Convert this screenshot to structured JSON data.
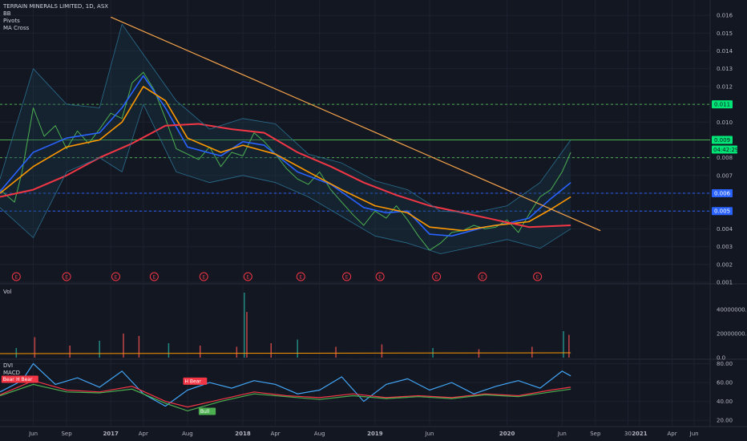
{
  "header": {
    "symbol_line": "TERRAIN MINERALS LIMITED, 1D, ASX",
    "indicators": [
      "BB",
      "Pivots",
      "MA Cross"
    ]
  },
  "volume_pane": {
    "label": "Vol"
  },
  "osc_pane": {
    "labels": [
      "DVI",
      "MACD"
    ]
  },
  "colors": {
    "background": "#131722",
    "grid": "#1e2230",
    "price_up": "#26a69a",
    "price_line": "#4caf50",
    "ma_fast": "#2962ff",
    "ma_mid": "#ff9800",
    "ma_slow": "#f23645",
    "trendline": "#f5a34a",
    "resistance": "#4caf50",
    "support": "#2962ff",
    "bb": "#2a6f8f",
    "dvi": "#42a5f5"
  },
  "chart_data": [
    {
      "type": "line",
      "title": "TERRAIN MINERALS LIMITED, 1D, ASX",
      "x_tick_labels": [
        "Jun",
        "Sep",
        "2017",
        "Apr",
        "Aug",
        "2018",
        "Apr",
        "Aug",
        "2019",
        "Jun",
        "2020",
        "Jun",
        "Sep",
        "30",
        "2021",
        "Apr",
        "Jun"
      ],
      "x_tick_dates": [
        "2016-06-01",
        "2016-09-01",
        "2017-01-01",
        "2017-04-01",
        "2017-08-01",
        "2018-01-01",
        "2018-04-01",
        "2018-08-01",
        "2019-01-01",
        "2019-06-01",
        "2020-01-01",
        "2020-06-01",
        "2020-09-01",
        "2020-11-30",
        "2021-01-01",
        "2021-04-01",
        "2021-06-01"
      ],
      "x_range": [
        "2016-03-01",
        "2021-07-15"
      ],
      "y_ticks": [
        "0.001",
        "0.002",
        "0.003",
        "0.004",
        "0.005",
        "0.006",
        "0.007",
        "0.008",
        "0.009",
        "0.010",
        "0.011",
        "0.012",
        "0.013",
        "0.014",
        "0.015",
        "0.016"
      ],
      "ylim": [
        0.001,
        0.0165
      ],
      "horizontal_levels": [
        {
          "price": 0.011,
          "label": "0.011",
          "style": "dashed",
          "color": "#4caf50"
        },
        {
          "price": 0.009,
          "label": "0.009",
          "style": "solid",
          "color": "#4caf50"
        },
        {
          "price": 0.006,
          "label": "0.006",
          "style": "dashed",
          "color": "#2962ff"
        },
        {
          "price": 0.005,
          "label": "0.005",
          "style": "dashed",
          "color": "#2962ff"
        },
        {
          "price": 0.008,
          "style": "dashed",
          "color": "#4caf50"
        }
      ],
      "countdown_label": "04:42:29",
      "trendline": {
        "from": [
          "2017-01-01",
          0.0159
        ],
        "to": [
          "2020-09-15",
          0.0039
        ]
      },
      "earnings_markers": {
        "label": "E",
        "dates": [
          "2016-04-15",
          "2016-09-01",
          "2017-01-15",
          "2017-05-01",
          "2017-09-15",
          "2018-01-15",
          "2018-06-10",
          "2018-10-15",
          "2019-01-15",
          "2019-06-20",
          "2019-10-25",
          "2020-03-25"
        ]
      },
      "series": [
        {
          "role": "close",
          "color": "#4caf50",
          "x": [
            "2016-03-01",
            "2016-04-10",
            "2016-05-01",
            "2016-06-01",
            "2016-07-01",
            "2016-08-01",
            "2016-09-01",
            "2016-10-01",
            "2016-11-01",
            "2016-12-01",
            "2017-01-01",
            "2017-02-01",
            "2017-03-01",
            "2017-04-01",
            "2017-05-01",
            "2017-06-01",
            "2017-07-01",
            "2017-08-01",
            "2017-09-01",
            "2017-10-01",
            "2017-11-01",
            "2017-12-01",
            "2018-01-01",
            "2018-02-01",
            "2018-03-01",
            "2018-04-01",
            "2018-05-01",
            "2018-06-01",
            "2018-07-01",
            "2018-08-01",
            "2018-09-01",
            "2018-10-01",
            "2018-11-01",
            "2018-12-01",
            "2019-01-01",
            "2019-02-01",
            "2019-03-01",
            "2019-04-01",
            "2019-05-01",
            "2019-06-01",
            "2019-07-01",
            "2019-08-01",
            "2019-09-01",
            "2019-10-01",
            "2019-11-01",
            "2019-12-01",
            "2020-01-01",
            "2020-02-01",
            "2020-03-01",
            "2020-04-01",
            "2020-05-01",
            "2020-06-01",
            "2020-06-25"
          ],
          "y": [
            0.0062,
            0.0055,
            0.0072,
            0.0108,
            0.0092,
            0.0098,
            0.0085,
            0.0095,
            0.0088,
            0.0096,
            0.0105,
            0.0102,
            0.0122,
            0.0128,
            0.0118,
            0.0102,
            0.0085,
            0.0082,
            0.0079,
            0.0086,
            0.0075,
            0.0083,
            0.0081,
            0.0094,
            0.0089,
            0.0082,
            0.0074,
            0.0068,
            0.0065,
            0.0072,
            0.0062,
            0.0055,
            0.0048,
            0.0042,
            0.005,
            0.0046,
            0.0053,
            0.0045,
            0.0036,
            0.0028,
            0.0032,
            0.0038,
            0.0039,
            0.0042,
            0.004,
            0.0041,
            0.0045,
            0.0038,
            0.0048,
            0.0058,
            0.0062,
            0.0072,
            0.0083
          ]
        },
        {
          "role": "ma_fast",
          "color": "#2962ff",
          "x": [
            "2016-03-01",
            "2016-06-01",
            "2016-09-01",
            "2016-12-01",
            "2017-02-01",
            "2017-04-01",
            "2017-06-01",
            "2017-08-01",
            "2017-11-01",
            "2018-01-01",
            "2018-03-01",
            "2018-06-01",
            "2018-09-01",
            "2018-12-01",
            "2019-02-01",
            "2019-04-01",
            "2019-06-01",
            "2019-08-01",
            "2019-11-01",
            "2020-01-01",
            "2020-03-01",
            "2020-05-01",
            "2020-06-25"
          ],
          "y": [
            0.0061,
            0.0083,
            0.0091,
            0.0094,
            0.0108,
            0.0126,
            0.0108,
            0.0086,
            0.0081,
            0.0089,
            0.0087,
            0.0072,
            0.0065,
            0.0052,
            0.0049,
            0.005,
            0.0037,
            0.0036,
            0.0041,
            0.0043,
            0.0046,
            0.0057,
            0.0066
          ]
        },
        {
          "role": "ma_mid",
          "color": "#ff9800",
          "x": [
            "2016-03-01",
            "2016-06-01",
            "2016-09-01",
            "2016-12-01",
            "2017-02-01",
            "2017-04-01",
            "2017-06-01",
            "2017-08-01",
            "2017-11-01",
            "2018-01-01",
            "2018-04-01",
            "2018-07-01",
            "2018-10-01",
            "2019-01-01",
            "2019-04-01",
            "2019-06-01",
            "2019-09-01",
            "2019-12-01",
            "2020-03-01",
            "2020-05-01",
            "2020-06-25"
          ],
          "y": [
            0.006,
            0.0075,
            0.0086,
            0.009,
            0.01,
            0.012,
            0.0112,
            0.0091,
            0.0083,
            0.0087,
            0.0082,
            0.0072,
            0.0062,
            0.0053,
            0.0049,
            0.0041,
            0.0039,
            0.0042,
            0.0044,
            0.0051,
            0.0058
          ]
        },
        {
          "role": "ma_slow",
          "color": "#f23645",
          "x": [
            "2016-03-01",
            "2016-06-01",
            "2016-09-01",
            "2016-12-01",
            "2017-03-01",
            "2017-06-01",
            "2017-09-01",
            "2017-12-01",
            "2018-03-01",
            "2018-06-01",
            "2018-09-01",
            "2018-12-01",
            "2019-03-01",
            "2019-06-01",
            "2019-09-01",
            "2019-12-01",
            "2020-03-01",
            "2020-06-25"
          ],
          "y": [
            0.0058,
            0.0062,
            0.007,
            0.008,
            0.0088,
            0.0098,
            0.0099,
            0.0096,
            0.0094,
            0.0083,
            0.0075,
            0.0066,
            0.0059,
            0.0053,
            0.0049,
            0.0045,
            0.0041,
            0.0042
          ]
        },
        {
          "role": "bb_upper",
          "color": "#2a6f8f",
          "x": [
            "2016-03-01",
            "2016-06-01",
            "2016-09-01",
            "2016-12-01",
            "2017-02-01",
            "2017-04-01",
            "2017-07-01",
            "2017-10-01",
            "2018-01-01",
            "2018-04-01",
            "2018-07-01",
            "2018-10-01",
            "2019-01-01",
            "2019-04-01",
            "2019-07-01",
            "2019-10-01",
            "2020-01-01",
            "2020-04-01",
            "2020-06-25"
          ],
          "y": [
            0.0068,
            0.013,
            0.011,
            0.0108,
            0.0155,
            0.0138,
            0.0112,
            0.0096,
            0.0102,
            0.0099,
            0.0082,
            0.0077,
            0.0067,
            0.0062,
            0.005,
            0.0049,
            0.0053,
            0.0066,
            0.009
          ]
        },
        {
          "role": "bb_lower",
          "color": "#2a6f8f",
          "x": [
            "2016-03-01",
            "2016-06-01",
            "2016-09-01",
            "2016-12-01",
            "2017-02-01",
            "2017-04-01",
            "2017-07-01",
            "2017-10-01",
            "2018-01-01",
            "2018-04-01",
            "2018-07-01",
            "2018-10-01",
            "2019-01-01",
            "2019-04-01",
            "2019-07-01",
            "2019-10-01",
            "2020-01-01",
            "2020-04-01",
            "2020-06-25"
          ],
          "y": [
            0.0052,
            0.0035,
            0.0072,
            0.008,
            0.0072,
            0.011,
            0.0072,
            0.0066,
            0.007,
            0.0066,
            0.0058,
            0.0047,
            0.0036,
            0.0032,
            0.0026,
            0.003,
            0.0034,
            0.0029,
            0.004
          ]
        }
      ]
    },
    {
      "type": "bar",
      "title": "Vol",
      "y_ticks": [
        "0.0",
        "20000000.0",
        "40000000.0"
      ],
      "ylim": [
        0,
        60000000
      ],
      "x": [
        "2016-04-15",
        "2016-06-05",
        "2016-09-10",
        "2016-12-01",
        "2017-02-05",
        "2017-03-20",
        "2017-06-10",
        "2017-09-05",
        "2017-12-15",
        "2018-01-05",
        "2018-01-12",
        "2018-03-20",
        "2018-06-01",
        "2018-09-15",
        "2019-01-20",
        "2019-06-10",
        "2019-10-15",
        "2020-03-10",
        "2020-06-05",
        "2020-06-20"
      ],
      "values": [
        8000000,
        17000000,
        10000000,
        14000000,
        20000000,
        18000000,
        12000000,
        10000000,
        9000000,
        54000000,
        38000000,
        12000000,
        15000000,
        9000000,
        11000000,
        8000000,
        7000000,
        9000000,
        22000000,
        19000000
      ]
    },
    {
      "type": "line",
      "title": "DVI",
      "y_ticks": [
        "20.00",
        "40.00",
        "60.00",
        "80.00"
      ],
      "ylim": [
        15,
        83
      ],
      "series": [
        {
          "name": "DVI",
          "color": "#42a5f5",
          "x": [
            "2016-03-01",
            "2016-05-01",
            "2016-06-01",
            "2016-08-01",
            "2016-10-01",
            "2016-12-01",
            "2017-02-01",
            "2017-04-01",
            "2017-06-01",
            "2017-08-01",
            "2017-10-01",
            "2017-12-01",
            "2018-02-01",
            "2018-04-01",
            "2018-06-01",
            "2018-08-01",
            "2018-10-01",
            "2018-12-01",
            "2019-02-01",
            "2019-04-01",
            "2019-06-01",
            "2019-08-01",
            "2019-10-01",
            "2019-12-01",
            "2020-02-01",
            "2020-04-01",
            "2020-06-01",
            "2020-06-25"
          ],
          "y": [
            50,
            62,
            80,
            58,
            65,
            55,
            72,
            48,
            35,
            52,
            60,
            54,
            62,
            58,
            48,
            52,
            66,
            40,
            58,
            64,
            52,
            60,
            48,
            56,
            62,
            54,
            72,
            67
          ]
        },
        {
          "name": "MACD",
          "color": "#f23645",
          "x": [
            "2016-03-01",
            "2016-06-01",
            "2016-09-01",
            "2016-12-01",
            "2017-03-01",
            "2017-06-01",
            "2017-08-01",
            "2017-11-01",
            "2018-02-01",
            "2018-05-01",
            "2018-08-01",
            "2018-11-01",
            "2019-02-01",
            "2019-05-01",
            "2019-08-01",
            "2019-11-01",
            "2020-02-01",
            "2020-05-01",
            "2020-06-25"
          ],
          "y": [
            47,
            62,
            52,
            50,
            56,
            40,
            34,
            42,
            50,
            46,
            44,
            48,
            44,
            46,
            44,
            48,
            46,
            52,
            55
          ]
        },
        {
          "name": "signal",
          "color": "#4caf50",
          "x": [
            "2016-03-01",
            "2016-06-01",
            "2016-09-01",
            "2016-12-01",
            "2017-03-01",
            "2017-06-01",
            "2017-08-01",
            "2017-11-01",
            "2018-02-01",
            "2018-05-01",
            "2018-08-01",
            "2018-11-01",
            "2019-02-01",
            "2019-05-01",
            "2019-08-01",
            "2019-11-01",
            "2020-02-01",
            "2020-05-01",
            "2020-06-25"
          ],
          "y": [
            46,
            58,
            50,
            49,
            53,
            38,
            30,
            40,
            48,
            45,
            42,
            46,
            43,
            45,
            43,
            47,
            45,
            50,
            53
          ]
        }
      ],
      "signal_labels": [
        {
          "text": "Bear",
          "date": "2016-03-05",
          "value": 63,
          "color": "#f23645"
        },
        {
          "text": "H Bear",
          "date": "2016-04-10",
          "value": 63,
          "color": "#f23645"
        },
        {
          "text": "H Bear",
          "date": "2017-07-20",
          "value": 61,
          "color": "#f23645"
        },
        {
          "text": "Bull",
          "date": "2017-09-01",
          "value": 29,
          "color": "#4caf50"
        }
      ]
    }
  ]
}
